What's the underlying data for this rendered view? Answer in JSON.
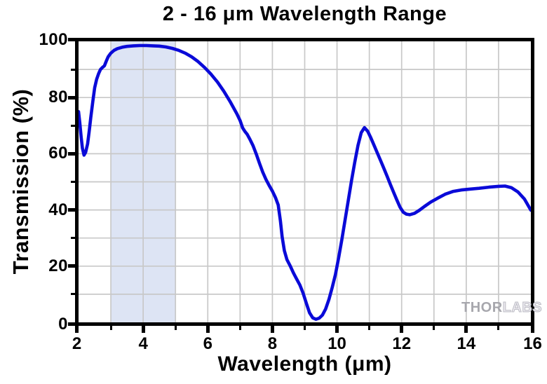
{
  "title": "2 - 16 μm Wavelength Range",
  "watermark": {
    "part1": "THOR",
    "part2": "LABS"
  },
  "colors": {
    "curve": "#0a0ad8",
    "shaded_band": "#dde4f4",
    "gridline": "#c8c8c8",
    "axis": "#000000",
    "watermark_solid": "#a7a7ad",
    "watermark_outline": "#bcbcc4"
  },
  "chart_data": {
    "type": "line",
    "title": "2 - 16 μm Wavelength Range",
    "xlabel": "Wavelength (μm)",
    "ylabel": "Transmission (%)",
    "xlim": [
      2,
      16
    ],
    "ylim": [
      0,
      100
    ],
    "x_major_ticks": [
      2,
      4,
      6,
      8,
      10,
      12,
      14,
      16
    ],
    "x_minor_ticks": [
      3,
      5,
      7,
      9,
      11,
      13,
      15
    ],
    "y_major_ticks": [
      0,
      20,
      40,
      60,
      80,
      100
    ],
    "y_minor_ticks": [
      10,
      30,
      50,
      70,
      90
    ],
    "grid": "gray gridlines at every 1 um and every 10 %",
    "legend": "none",
    "shaded_region": {
      "x_start": 3,
      "x_end": 5
    },
    "series": [
      {
        "name": "Transmission",
        "x": [
          2.0,
          2.04,
          2.08,
          2.12,
          2.17,
          2.22,
          2.28,
          2.33,
          2.38,
          2.44,
          2.5,
          2.56,
          2.62,
          2.68,
          2.74,
          2.8,
          2.86,
          2.92,
          3.0,
          3.1,
          3.2,
          3.35,
          3.5,
          3.7,
          3.9,
          4.1,
          4.3,
          4.5,
          4.7,
          4.9,
          5.1,
          5.3,
          5.5,
          5.7,
          5.9,
          6.1,
          6.3,
          6.5,
          6.7,
          6.9,
          7.0,
          7.08,
          7.15,
          7.22,
          7.3,
          7.4,
          7.5,
          7.6,
          7.7,
          7.8,
          7.9,
          8.0,
          8.1,
          8.18,
          8.25,
          8.3,
          8.37,
          8.45,
          8.55,
          8.65,
          8.75,
          8.85,
          8.95,
          9.05,
          9.15,
          9.25,
          9.35,
          9.45,
          9.55,
          9.65,
          9.75,
          9.85,
          9.95,
          10.05,
          10.15,
          10.25,
          10.35,
          10.45,
          10.55,
          10.65,
          10.75,
          10.85,
          10.95,
          11.05,
          11.15,
          11.25,
          11.35,
          11.45,
          11.55,
          11.65,
          11.75,
          11.85,
          11.95,
          12.05,
          12.15,
          12.25,
          12.4,
          12.55,
          12.7,
          12.9,
          13.1,
          13.35,
          13.6,
          13.85,
          14.1,
          14.4,
          14.7,
          15.0,
          15.2,
          15.4,
          15.6,
          15.8,
          16.0
        ],
        "y": [
          75.0,
          71.0,
          66.0,
          62.0,
          59.5,
          60.5,
          63.5,
          68.0,
          73.0,
          78.5,
          83.5,
          86.5,
          88.5,
          90.0,
          90.7,
          91.3,
          93.0,
          94.6,
          95.8,
          96.8,
          97.4,
          97.9,
          98.2,
          98.4,
          98.5,
          98.5,
          98.4,
          98.3,
          98.0,
          97.5,
          96.8,
          95.8,
          94.5,
          92.8,
          90.7,
          88.3,
          85.5,
          82.2,
          78.4,
          74.2,
          71.8,
          69.2,
          67.9,
          66.9,
          65.2,
          62.9,
          59.9,
          56.6,
          53.5,
          50.9,
          48.7,
          46.7,
          44.3,
          41.8,
          36.0,
          30.5,
          25.5,
          22.3,
          20.1,
          17.6,
          15.4,
          13.3,
          10.4,
          6.8,
          3.4,
          1.6,
          1.1,
          1.5,
          2.6,
          4.8,
          8.2,
          12.4,
          17.0,
          23.0,
          29.5,
          36.5,
          43.5,
          50.5,
          57.0,
          63.0,
          67.5,
          69.3,
          68.0,
          65.6,
          62.9,
          60.2,
          57.5,
          54.8,
          52.0,
          49.1,
          46.3,
          43.6,
          41.0,
          39.2,
          38.5,
          38.3,
          38.8,
          39.9,
          41.2,
          42.8,
          44.1,
          45.6,
          46.6,
          47.1,
          47.4,
          47.7,
          48.1,
          48.4,
          48.5,
          47.9,
          46.4,
          43.9,
          39.9
        ]
      }
    ]
  }
}
